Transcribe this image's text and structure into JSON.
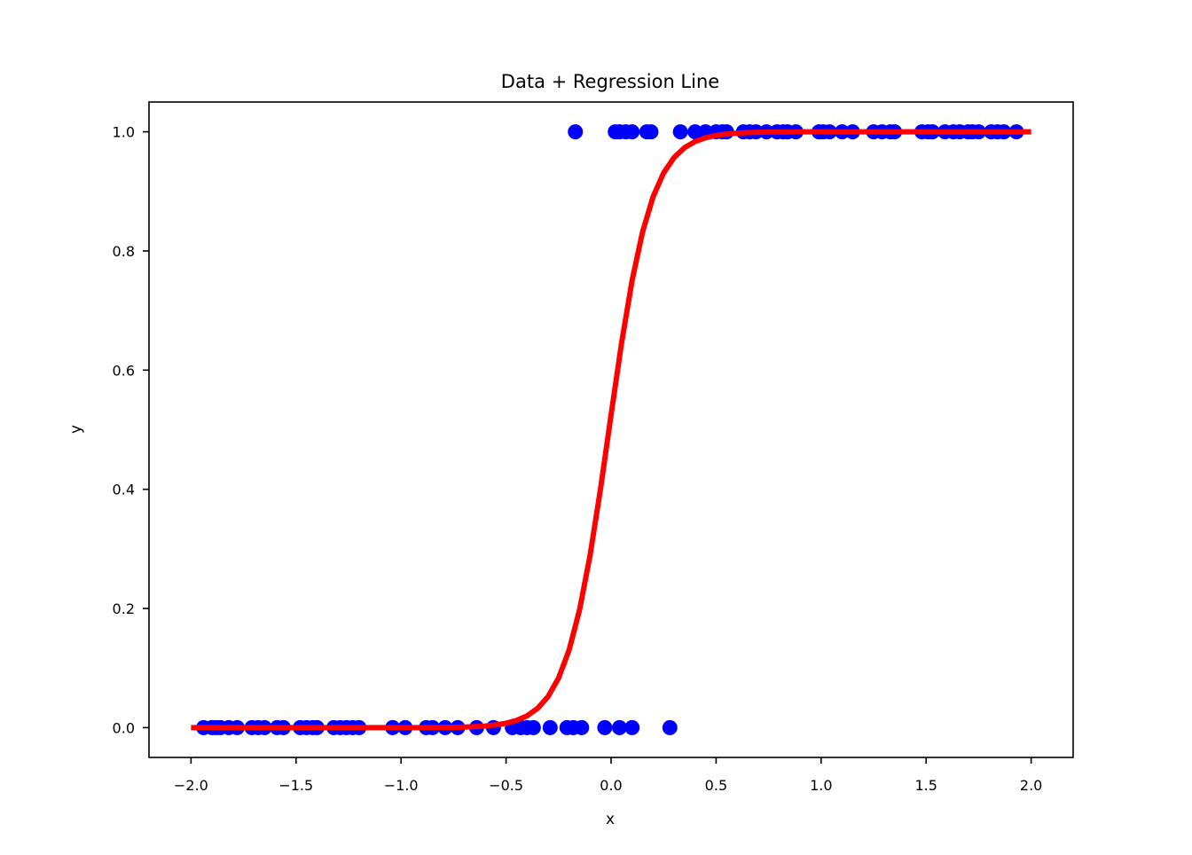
{
  "chart_data": {
    "type": "scatter",
    "title": "Data + Regression Line",
    "xlabel": "x",
    "ylabel": "y",
    "xlim": [
      -2.2,
      2.2
    ],
    "ylim": [
      -0.05,
      1.05
    ],
    "xticks": [
      -2.0,
      -1.5,
      -1.0,
      -0.5,
      0.0,
      0.5,
      1.0,
      1.5,
      2.0
    ],
    "xtick_labels": [
      "−2.0",
      "−1.5",
      "−1.0",
      "−0.5",
      "0.0",
      "0.5",
      "1.0",
      "1.5",
      "2.0"
    ],
    "yticks": [
      0.0,
      0.2,
      0.4,
      0.6,
      0.8,
      1.0
    ],
    "ytick_labels": [
      "0.0",
      "0.2",
      "0.4",
      "0.6",
      "0.8",
      "1.0"
    ],
    "grid": false,
    "series": [
      {
        "type": "scatter",
        "color": "#0000ff",
        "points": [
          [
            -0.17,
            1
          ],
          [
            0.02,
            1
          ],
          [
            0.04,
            1
          ],
          [
            0.07,
            1
          ],
          [
            0.1,
            1
          ],
          [
            0.17,
            1
          ],
          [
            0.19,
            1
          ],
          [
            0.33,
            1
          ],
          [
            0.4,
            1
          ],
          [
            0.45,
            1
          ],
          [
            0.5,
            1
          ],
          [
            0.53,
            1
          ],
          [
            0.55,
            1
          ],
          [
            0.63,
            1
          ],
          [
            0.66,
            1
          ],
          [
            0.69,
            1
          ],
          [
            0.74,
            1
          ],
          [
            0.79,
            1
          ],
          [
            0.82,
            1
          ],
          [
            0.84,
            1
          ],
          [
            0.88,
            1
          ],
          [
            0.99,
            1
          ],
          [
            1.01,
            1
          ],
          [
            1.04,
            1
          ],
          [
            1.1,
            1
          ],
          [
            1.15,
            1
          ],
          [
            1.25,
            1
          ],
          [
            1.29,
            1
          ],
          [
            1.33,
            1
          ],
          [
            1.35,
            1
          ],
          [
            1.48,
            1
          ],
          [
            1.51,
            1
          ],
          [
            1.53,
            1
          ],
          [
            1.59,
            1
          ],
          [
            1.63,
            1
          ],
          [
            1.66,
            1
          ],
          [
            1.7,
            1
          ],
          [
            1.72,
            1
          ],
          [
            1.75,
            1
          ],
          [
            1.81,
            1
          ],
          [
            1.84,
            1
          ],
          [
            1.87,
            1
          ],
          [
            1.93,
            1
          ],
          [
            -1.94,
            0
          ],
          [
            -1.9,
            0
          ],
          [
            -1.88,
            0
          ],
          [
            -1.86,
            0
          ],
          [
            -1.82,
            0
          ],
          [
            -1.78,
            0
          ],
          [
            -1.71,
            0
          ],
          [
            -1.68,
            0
          ],
          [
            -1.65,
            0
          ],
          [
            -1.59,
            0
          ],
          [
            -1.56,
            0
          ],
          [
            -1.48,
            0
          ],
          [
            -1.45,
            0
          ],
          [
            -1.42,
            0
          ],
          [
            -1.4,
            0
          ],
          [
            -1.32,
            0
          ],
          [
            -1.29,
            0
          ],
          [
            -1.26,
            0
          ],
          [
            -1.23,
            0
          ],
          [
            -1.2,
            0
          ],
          [
            -1.04,
            0
          ],
          [
            -0.98,
            0
          ],
          [
            -0.88,
            0
          ],
          [
            -0.85,
            0
          ],
          [
            -0.79,
            0
          ],
          [
            -0.73,
            0
          ],
          [
            -0.64,
            0
          ],
          [
            -0.56,
            0
          ],
          [
            -0.47,
            0
          ],
          [
            -0.43,
            0
          ],
          [
            -0.4,
            0
          ],
          [
            -0.37,
            0
          ],
          [
            -0.29,
            0
          ],
          [
            -0.21,
            0
          ],
          [
            -0.18,
            0
          ],
          [
            -0.14,
            0
          ],
          [
            -0.03,
            0
          ],
          [
            0.04,
            0
          ],
          [
            0.1,
            0
          ],
          [
            0.28,
            0
          ]
        ]
      },
      {
        "type": "line",
        "name": "",
        "color": "#ff0000",
        "function": "logistic",
        "x_range": [
          -2.0,
          2.0
        ],
        "intercept": 0.1,
        "slope": 10.0,
        "samples": 81
      }
    ]
  }
}
